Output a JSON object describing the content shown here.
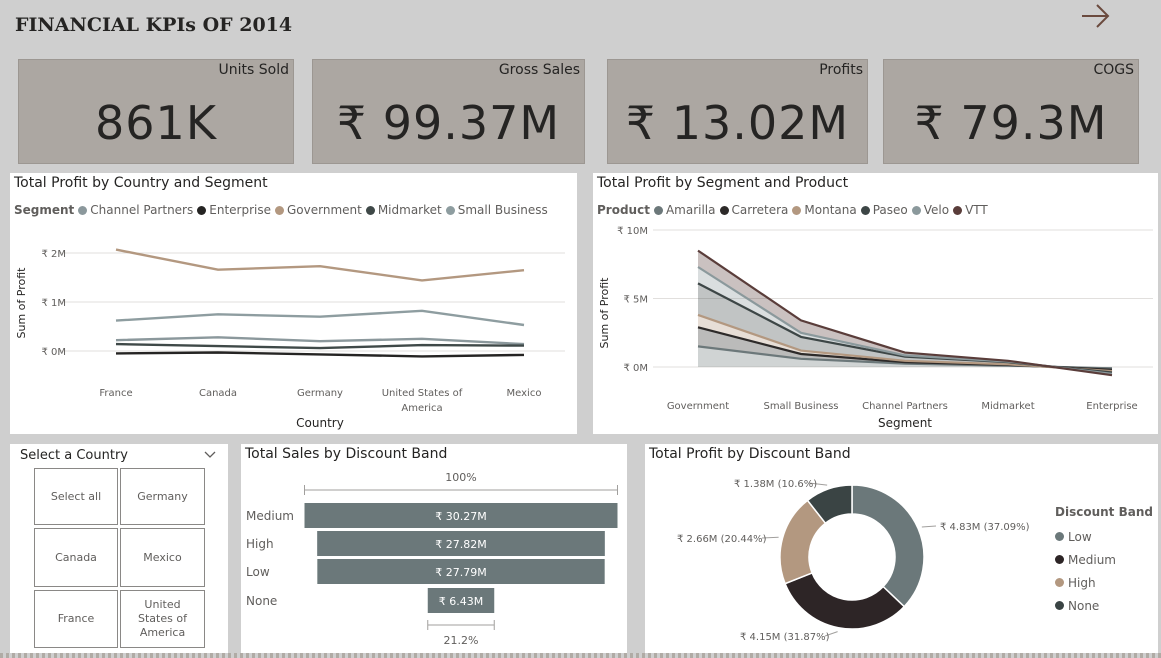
{
  "page": {
    "title": "FINANCIAL KPIs OF 2014",
    "nav_icon": "arrow-right-icon"
  },
  "kpis": [
    {
      "label": "Units Sold",
      "value": "861K"
    },
    {
      "label": "Gross Sales",
      "value": "₹ 99.37M"
    },
    {
      "label": "Profits",
      "value": "₹ 13.02M"
    },
    {
      "label": "COGS",
      "value": "₹ 79.3M"
    }
  ],
  "colors": {
    "channel_partners": "#8b989c",
    "enterprise": "#252423",
    "government": "#b39880",
    "midmarket": "#3f4948",
    "small_business": "#8e9da0",
    "amarilla": "#6c787a",
    "carretera": "#2d2a29",
    "montana": "#b39880",
    "paseo": "#3d4646",
    "velo": "#8b999c",
    "vtt": "#5a3d3a",
    "bar": "#6b787a",
    "donut_low": "#6b787a",
    "donut_medium": "#2d2526",
    "donut_high": "#b39880",
    "donut_none": "#3a4444"
  },
  "chart_data": [
    {
      "type": "line",
      "title": "Total Profit by Country and Segment",
      "legend_title": "Segment",
      "xlabel": "Country",
      "ylabel": "Sum of Profit",
      "categories": [
        "France",
        "Canada",
        "Germany",
        "United States of America",
        "Mexico"
      ],
      "y_ticks": [
        "₹ 0M",
        "₹ 1M",
        "₹ 2M"
      ],
      "ylim": [
        -0.4,
        2.4
      ],
      "grid": true,
      "legend_position": "top-left",
      "series": [
        {
          "name": "Channel Partners",
          "values": [
            0.22,
            0.28,
            0.2,
            0.25,
            0.14
          ]
        },
        {
          "name": "Enterprise",
          "values": [
            -0.05,
            -0.03,
            -0.07,
            -0.11,
            -0.08
          ]
        },
        {
          "name": "Government",
          "values": [
            2.07,
            1.66,
            1.73,
            1.44,
            1.65
          ]
        },
        {
          "name": "Midmarket",
          "values": [
            0.14,
            0.1,
            0.06,
            0.12,
            0.11
          ]
        },
        {
          "name": "Small Business",
          "values": [
            0.62,
            0.75,
            0.7,
            0.82,
            0.53
          ]
        }
      ]
    },
    {
      "type": "area",
      "title": "Total Profit by Segment and Product",
      "legend_title": "Product",
      "xlabel": "Segment",
      "ylabel": "Sum of Profit",
      "categories": [
        "Government",
        "Small Business",
        "Channel Partners",
        "Midmarket",
        "Enterprise"
      ],
      "y_ticks": [
        "₹ 0M",
        "₹ 5M",
        "₹ 10M"
      ],
      "ylim": [
        -1,
        10
      ],
      "grid": true,
      "stacked": true,
      "legend_position": "top-left",
      "series": [
        {
          "name": "Amarilla",
          "values": [
            1.5,
            0.6,
            0.25,
            0.1,
            -0.1
          ]
        },
        {
          "name": "Carretera",
          "values": [
            1.4,
            0.35,
            0.1,
            0.05,
            -0.1
          ]
        },
        {
          "name": "Montana",
          "values": [
            0.9,
            0.25,
            0.1,
            0.05,
            -0.1
          ]
        },
        {
          "name": "Paseo",
          "values": [
            2.3,
            1.0,
            0.3,
            0.15,
            -0.1
          ]
        },
        {
          "name": "Velo",
          "values": [
            1.2,
            0.3,
            0.1,
            0.05,
            -0.1
          ]
        },
        {
          "name": "VTT",
          "values": [
            1.2,
            0.9,
            0.2,
            0.05,
            -0.1
          ]
        }
      ]
    },
    {
      "type": "bar",
      "title": "Total Sales by Discount Band",
      "categories": [
        "Medium",
        "High",
        "Low",
        "None"
      ],
      "values": [
        30.27,
        27.82,
        27.79,
        6.43
      ],
      "value_labels": [
        "₹ 30.27M",
        "₹ 27.82M",
        "₹ 27.79M",
        "₹ 6.43M"
      ],
      "top_label": "100%",
      "bottom_label": "21.2%"
    },
    {
      "type": "pie",
      "title": "Total Profit by Discount Band",
      "legend_title": "Discount Band",
      "legend_position": "right",
      "categories": [
        "Low",
        "Medium",
        "High",
        "None"
      ],
      "values": [
        4.83,
        4.15,
        2.66,
        1.38
      ],
      "percent": [
        37.09,
        31.87,
        20.44,
        10.6
      ],
      "data_labels": [
        "₹ 4.83M (37.09%)",
        "₹ 4.15M (31.87%)",
        "₹ 2.66M (20.44%)",
        "₹ 1.38M (10.6%)"
      ]
    }
  ],
  "slicer": {
    "title": "Select a Country",
    "options": [
      "Select all",
      "Germany",
      "Canada",
      "Mexico",
      "France",
      "United States of America"
    ]
  }
}
